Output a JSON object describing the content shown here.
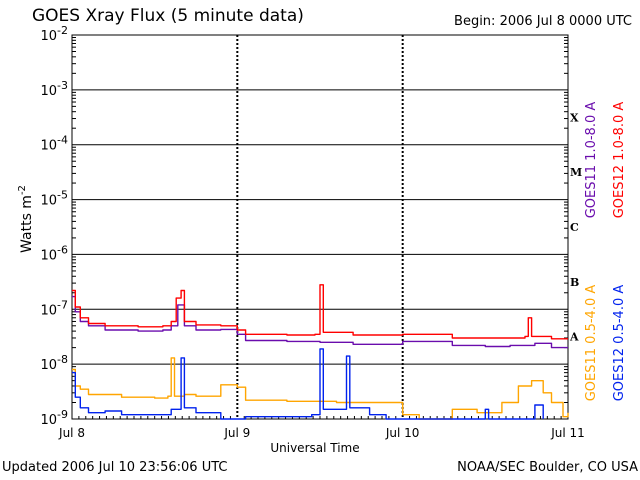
{
  "chart_data": {
    "type": "line",
    "title": "GOES Xray Flux (5 minute data)",
    "begin_label": "Begin:  2006 Jul 8 0000 UTC",
    "xlabel": "Universal Time",
    "ylabel": "Watts m",
    "ylabel_sup": "-2",
    "y_scale": "log",
    "ylim": [
      1e-09,
      0.01
    ],
    "y_ticks": [
      {
        "base": "10",
        "exp": "-9",
        "value": 1e-09
      },
      {
        "base": "10",
        "exp": "-8",
        "value": 1e-08
      },
      {
        "base": "10",
        "exp": "-7",
        "value": 1e-07
      },
      {
        "base": "10",
        "exp": "-6",
        "value": 1e-06
      },
      {
        "base": "10",
        "exp": "-5",
        "value": 1e-05
      },
      {
        "base": "10",
        "exp": "-4",
        "value": 0.0001
      },
      {
        "base": "10",
        "exp": "-3",
        "value": 0.001
      },
      {
        "base": "10",
        "exp": "-2",
        "value": 0.01
      }
    ],
    "x_ticks": [
      {
        "label": "Jul 8",
        "day": 0
      },
      {
        "label": "Jul 9",
        "day": 1
      },
      {
        "label": "Jul 10",
        "day": 2
      },
      {
        "label": "Jul 11",
        "day": 3
      }
    ],
    "xlim": [
      0,
      3
    ],
    "flare_classes": [
      {
        "label": "A",
        "value": 3.16e-08
      },
      {
        "label": "B",
        "value": 3.16e-07
      },
      {
        "label": "C",
        "value": 3.16e-06
      },
      {
        "label": "M",
        "value": 3.16e-05
      },
      {
        "label": "X",
        "value": 0.000316
      }
    ],
    "series": [
      {
        "name": "GOES11 1.0-8.0 A",
        "color": "#6a0dad",
        "band": "long",
        "points": [
          [
            0,
            1.7e-07
          ],
          [
            0.02,
            9e-08
          ],
          [
            0.05,
            6e-08
          ],
          [
            0.1,
            5e-08
          ],
          [
            0.2,
            4.2e-08
          ],
          [
            0.4,
            4e-08
          ],
          [
            0.55,
            4.2e-08
          ],
          [
            0.6,
            5e-08
          ],
          [
            0.64,
            1.2e-07
          ],
          [
            0.68,
            5e-08
          ],
          [
            0.75,
            4.2e-08
          ],
          [
            0.9,
            4.3e-08
          ],
          [
            1.0,
            3.5e-08
          ],
          [
            1.05,
            2.7e-08
          ],
          [
            1.3,
            2.6e-08
          ],
          [
            1.5,
            2.5e-08
          ],
          [
            1.7,
            2.3e-08
          ],
          [
            2.0,
            2.6e-08
          ],
          [
            2.3,
            2.2e-08
          ],
          [
            2.5,
            2.1e-08
          ],
          [
            2.65,
            2.2e-08
          ],
          [
            2.8,
            2.4e-08
          ],
          [
            2.9,
            2e-08
          ],
          [
            3.0,
            2e-08
          ]
        ]
      },
      {
        "name": "GOES12 1.0-8.0 A",
        "color": "#ff0000",
        "band": "long",
        "points": [
          [
            0,
            2.2e-07
          ],
          [
            0.02,
            1.1e-07
          ],
          [
            0.05,
            7e-08
          ],
          [
            0.1,
            5.5e-08
          ],
          [
            0.2,
            5e-08
          ],
          [
            0.4,
            4.8e-08
          ],
          [
            0.55,
            5e-08
          ],
          [
            0.6,
            6e-08
          ],
          [
            0.63,
            1.6e-07
          ],
          [
            0.66,
            2.2e-07
          ],
          [
            0.68,
            6e-08
          ],
          [
            0.75,
            5.2e-08
          ],
          [
            0.9,
            5e-08
          ],
          [
            1.0,
            4.2e-08
          ],
          [
            1.05,
            3.5e-08
          ],
          [
            1.3,
            3.4e-08
          ],
          [
            1.47,
            3.5e-08
          ],
          [
            1.5,
            2.8e-07
          ],
          [
            1.52,
            3.8e-08
          ],
          [
            1.7,
            3.4e-08
          ],
          [
            2.0,
            3.5e-08
          ],
          [
            2.3,
            3e-08
          ],
          [
            2.5,
            3e-08
          ],
          [
            2.74,
            3.2e-08
          ],
          [
            2.76,
            7e-08
          ],
          [
            2.78,
            3.2e-08
          ],
          [
            2.9,
            2.9e-08
          ],
          [
            3.0,
            2.9e-08
          ]
        ]
      },
      {
        "name": "GOES11 0.5-4.0 A",
        "color": "#ffa500",
        "band": "short",
        "points": [
          [
            0,
            8e-09
          ],
          [
            0.02,
            4e-09
          ],
          [
            0.05,
            3.5e-09
          ],
          [
            0.1,
            2.8e-09
          ],
          [
            0.3,
            2.5e-09
          ],
          [
            0.5,
            2.4e-09
          ],
          [
            0.58,
            2.6e-09
          ],
          [
            0.6,
            1.3e-08
          ],
          [
            0.62,
            2.6e-09
          ],
          [
            0.68,
            2.8e-09
          ],
          [
            0.75,
            2.6e-09
          ],
          [
            0.9,
            4.2e-09
          ],
          [
            1.0,
            3.8e-09
          ],
          [
            1.05,
            2.2e-09
          ],
          [
            1.3,
            2.1e-09
          ],
          [
            1.6,
            2e-09
          ],
          [
            1.9,
            2e-09
          ],
          [
            2.0,
            1.2e-09
          ],
          [
            2.1,
            1e-09
          ],
          [
            2.3,
            1.5e-09
          ],
          [
            2.45,
            1.3e-09
          ],
          [
            2.6,
            2e-09
          ],
          [
            2.7,
            4e-09
          ],
          [
            2.78,
            5e-09
          ],
          [
            2.85,
            3e-09
          ],
          [
            2.9,
            2e-09
          ],
          [
            2.97,
            1.1e-09
          ],
          [
            3.0,
            1.3e-09
          ]
        ]
      },
      {
        "name": "GOES12 0.5-4.0 A",
        "color": "#0022ee",
        "band": "short",
        "points": [
          [
            0,
            7e-09
          ],
          [
            0.02,
            2.5e-09
          ],
          [
            0.05,
            1.6e-09
          ],
          [
            0.1,
            1.3e-09
          ],
          [
            0.2,
            1.4e-09
          ],
          [
            0.3,
            1.2e-09
          ],
          [
            0.5,
            1.2e-09
          ],
          [
            0.6,
            1.5e-09
          ],
          [
            0.66,
            1.3e-08
          ],
          [
            0.68,
            1.6e-09
          ],
          [
            0.75,
            1.3e-09
          ],
          [
            0.9,
            1e-09
          ],
          [
            1.05,
            1.1e-09
          ],
          [
            1.3,
            1.1e-09
          ],
          [
            1.45,
            1.2e-09
          ],
          [
            1.5,
            1.9e-08
          ],
          [
            1.52,
            1.5e-09
          ],
          [
            1.6,
            1.5e-09
          ],
          [
            1.66,
            1.4e-08
          ],
          [
            1.68,
            1.6e-09
          ],
          [
            1.8,
            1.2e-09
          ],
          [
            1.9,
            1e-09
          ],
          [
            2.45,
            1e-09
          ],
          [
            2.5,
            1.5e-09
          ],
          [
            2.52,
            1e-09
          ],
          [
            2.75,
            1e-09
          ],
          [
            2.8,
            1.8e-09
          ],
          [
            2.85,
            1e-09
          ]
        ]
      }
    ],
    "grid": true
  },
  "footer": {
    "updated": "Updated 2006 Jul 10 23:56:06 UTC",
    "credit": "NOAA/SEC Boulder, CO USA"
  }
}
